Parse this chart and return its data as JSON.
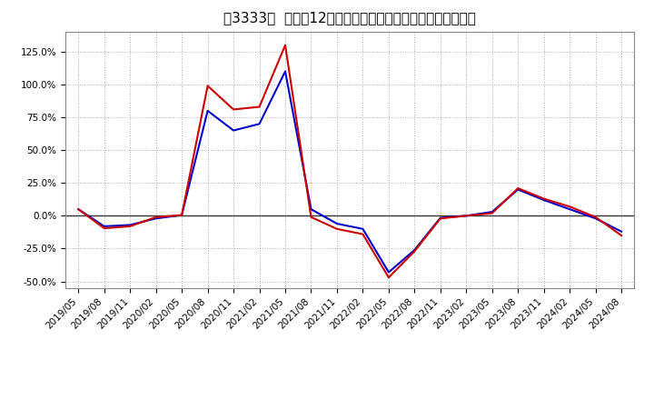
{
  "title": "［3333］  利益の12か月移動合計の対前年同期増減率の推移",
  "background_color": "#ffffff",
  "plot_bg_color": "#ffffff",
  "grid_color": "#aaaaaa",
  "x_labels": [
    "2019/05",
    "2019/08",
    "2019/11",
    "2020/02",
    "2020/05",
    "2020/08",
    "2020/11",
    "2021/02",
    "2021/05",
    "2021/08",
    "2021/11",
    "2022/02",
    "2022/05",
    "2022/08",
    "2022/11",
    "2023/02",
    "2023/05",
    "2023/08",
    "2023/11",
    "2024/02",
    "2024/05",
    "2024/08"
  ],
  "series_blue": [
    5.0,
    -8.0,
    -7.0,
    -2.0,
    0.5,
    80.0,
    65.0,
    70.0,
    110.0,
    5.0,
    -6.0,
    -10.0,
    -43.0,
    -26.0,
    -1.5,
    0.0,
    3.0,
    20.0,
    12.0,
    5.0,
    -2.0,
    -12.0
  ],
  "series_red": [
    5.0,
    -9.5,
    -8.0,
    -1.0,
    0.5,
    99.0,
    81.0,
    83.0,
    130.0,
    -1.0,
    -10.0,
    -14.0,
    -47.0,
    -27.0,
    -2.0,
    0.0,
    2.0,
    21.0,
    13.0,
    7.0,
    -1.0,
    -15.0
  ],
  "ylim": [
    -55.0,
    140.0
  ],
  "yticks": [
    -50.0,
    -25.0,
    0.0,
    25.0,
    50.0,
    75.0,
    100.0,
    125.0
  ],
  "line_color_blue": "#0000cc",
  "line_color_red": "#cc0000",
  "zero_line_color": "#333333",
  "title_fontsize": 11,
  "tick_fontsize": 7.5,
  "legend_fontsize": 9
}
